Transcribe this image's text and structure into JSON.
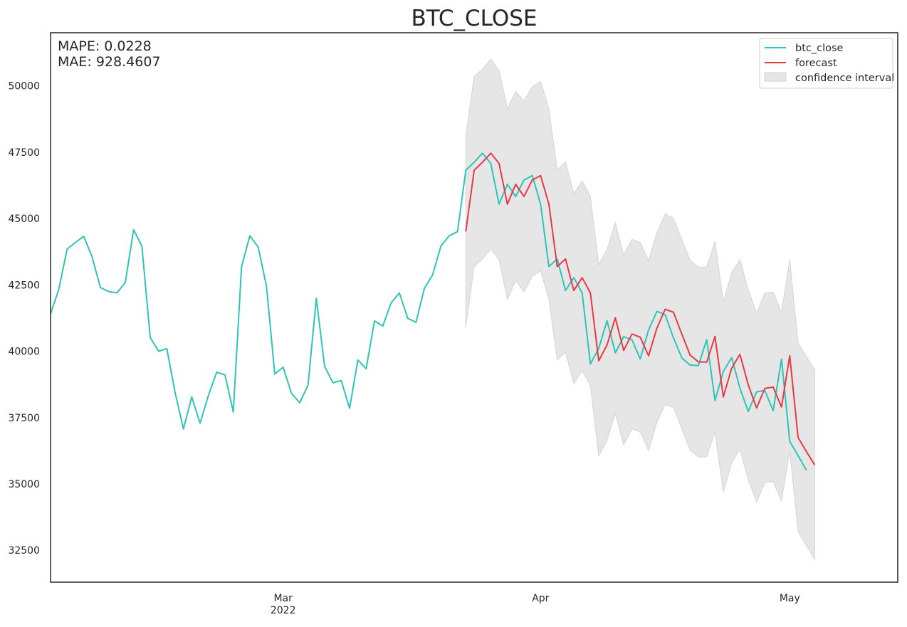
{
  "chart_data": {
    "type": "line",
    "title": "BTC_CLOSE",
    "xlabel": "",
    "ylabel": "",
    "metrics": [
      "MAPE: 0.0228",
      "MAE: 928.4607"
    ],
    "x_start": "2022-02-01",
    "x_end": "2022-05-13",
    "xlim": [
      "2022-02-01",
      "2022-05-14"
    ],
    "ylim": [
      31300,
      52000
    ],
    "x_ticks": [
      {
        "date": "2022-03-01",
        "label": [
          "Mar",
          "2022"
        ]
      },
      {
        "date": "2022-04-01",
        "label": [
          "Apr"
        ]
      },
      {
        "date": "2022-05-01",
        "label": [
          "May"
        ]
      }
    ],
    "y_ticks": [
      32500,
      35000,
      37500,
      40000,
      42500,
      45000,
      47500,
      50000
    ],
    "grid": false,
    "legend_position": "top-right",
    "legend": [
      "btc_close",
      "forecast",
      "confidence interval"
    ],
    "colors": {
      "actual": "#2ec4b6",
      "forecast": "#e63946",
      "band": "#e6e6e6",
      "band_edge": "#d4d4d4"
    },
    "series": [
      {
        "name": "btc_close",
        "start_date": "2022-02-01",
        "values": [
          41400,
          42350,
          43850,
          44100,
          44330,
          43560,
          42400,
          42250,
          42200,
          42590,
          44580,
          43960,
          40520,
          40000,
          40100,
          38440,
          37070,
          38280,
          37290,
          38330,
          39210,
          39110,
          37710,
          43190,
          44350,
          43920,
          42450,
          39140,
          39400,
          38420,
          38060,
          38730,
          41990,
          39430,
          38810,
          38900,
          37850,
          39670,
          39340,
          41140,
          40950,
          41820,
          42200,
          41240,
          41090,
          42360,
          42880,
          43960,
          44350,
          44510,
          46820,
          47120,
          47460,
          47080,
          45540,
          46290,
          45830,
          46450,
          46620,
          45540,
          43190,
          43480,
          42290,
          42770,
          42200,
          39520,
          40110,
          41150,
          39940,
          40550,
          40430,
          39710,
          40800,
          41500,
          41380,
          40500,
          39750,
          39480,
          39460,
          40440,
          38140,
          39240,
          39760,
          38610,
          37730,
          38470,
          38520,
          37760,
          39700,
          36600,
          36070,
          35520
        ]
      },
      {
        "name": "forecast",
        "start_date": "2022-03-23",
        "values": [
          44510,
          46820,
          47120,
          47460,
          47080,
          45540,
          46290,
          45830,
          46450,
          46620,
          45540,
          43190,
          43480,
          42290,
          42770,
          42200,
          39640,
          40240,
          41260,
          40030,
          40650,
          40530,
          39830,
          40870,
          41580,
          41470,
          40650,
          39860,
          39600,
          39590,
          40560,
          38280,
          39360,
          39880,
          38740,
          37860,
          38600,
          38650,
          37900,
          39830,
          36750,
          36220,
          35720
        ]
      }
    ],
    "confidence_interval": {
      "start_date": "2022-03-23",
      "upper": [
        48100,
        50350,
        50630,
        51000,
        50570,
        49120,
        49800,
        49430,
        49970,
        50160,
        49130,
        46830,
        47130,
        45940,
        46420,
        45830,
        43250,
        43840,
        44840,
        43620,
        44220,
        44100,
        43410,
        44460,
        45170,
        45010,
        44210,
        43430,
        43170,
        43170,
        44140,
        41860,
        42960,
        43460,
        42310,
        41440,
        42190,
        42230,
        41480,
        43420,
        40310,
        39800,
        39300
      ],
      "lower": [
        40920,
        43190,
        43480,
        43840,
        43460,
        41950,
        42670,
        42240,
        42830,
        43030,
        41970,
        39670,
        39970,
        38780,
        39270,
        38720,
        36060,
        36650,
        37670,
        36470,
        37080,
        36960,
        36260,
        37320,
        38000,
        37880,
        37090,
        36280,
        36020,
        36020,
        36960,
        34700,
        35790,
        36310,
        35170,
        34320,
        35050,
        35090,
        34360,
        36250,
        33200,
        32680,
        32170
      ]
    }
  }
}
